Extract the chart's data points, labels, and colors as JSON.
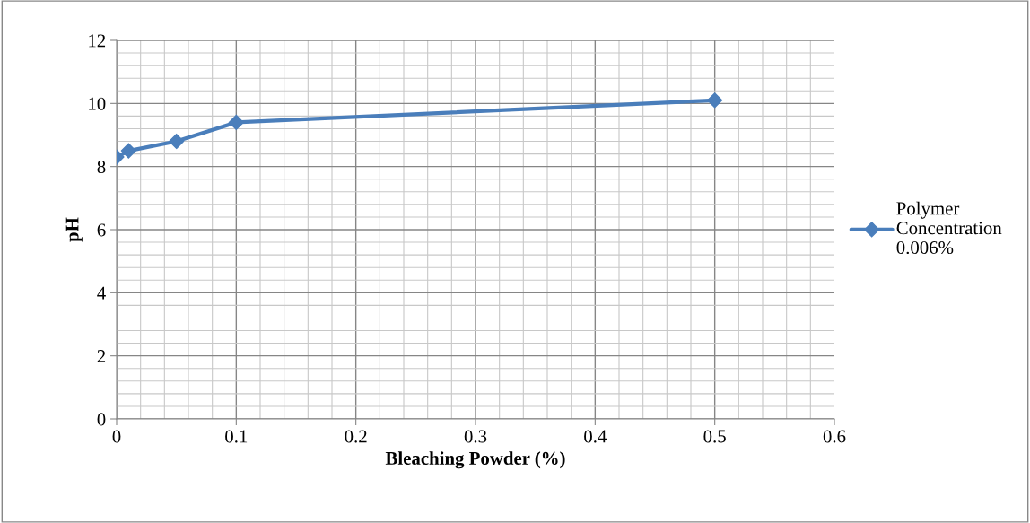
{
  "chart_data": {
    "type": "line",
    "xlabel": "Bleaching Powder (%)",
    "ylabel": "pH",
    "x": [
      0,
      0.01,
      0.05,
      0.1,
      0.5
    ],
    "series": [
      {
        "name": "Polymer Concentration 0.006%",
        "color": "#4a7ebb",
        "values": [
          8.3,
          8.5,
          8.8,
          9.4,
          10.1
        ]
      }
    ],
    "xlim": [
      0,
      0.6
    ],
    "xticks": [
      0,
      0.1,
      0.2,
      0.3,
      0.4,
      0.5,
      0.6
    ],
    "ylim": [
      0,
      12
    ],
    "yticks": [
      0,
      2,
      4,
      6,
      8,
      10,
      12
    ],
    "grid": true,
    "legend": "right",
    "marker": "diamond",
    "line_style": "solid"
  }
}
